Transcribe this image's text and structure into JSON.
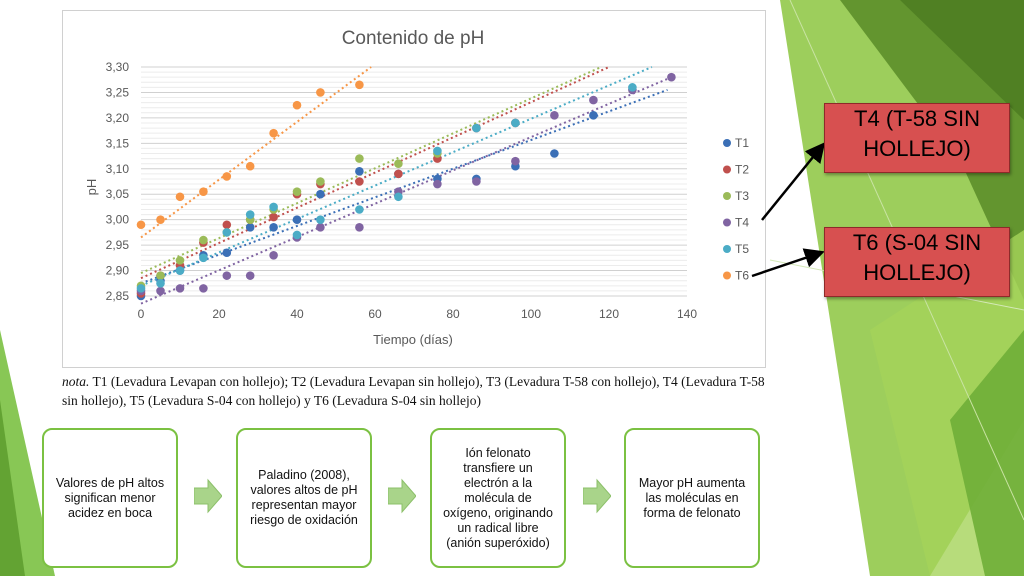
{
  "chart_data": {
    "type": "scatter",
    "title": "Contenido de pH",
    "xlabel": "Tiempo (días)",
    "ylabel": "pH",
    "xlim": [
      0,
      140
    ],
    "ylim": [
      2.85,
      3.3
    ],
    "xticks": [
      "0",
      "20",
      "40",
      "60",
      "80",
      "100",
      "120",
      "140"
    ],
    "yticks": [
      "2,85",
      "2,90",
      "2,95",
      "3,00",
      "3,05",
      "3,10",
      "3,15",
      "3,20",
      "3,25",
      "3,30"
    ],
    "grid": "horizontal",
    "legend_position": "right",
    "trendline_style": "dotted linear",
    "series": [
      {
        "name": "T1",
        "color": "#3b6fb6",
        "x": [
          0,
          5,
          10,
          16,
          22,
          28,
          34,
          40,
          46,
          56,
          66,
          76,
          86,
          96,
          106,
          116
        ],
        "y": [
          2.85,
          2.88,
          2.9,
          2.93,
          2.935,
          2.985,
          2.985,
          3.0,
          3.05,
          3.095,
          3.09,
          3.08,
          3.08,
          3.105,
          3.13,
          3.205
        ],
        "trend": [
          [
            0,
            2.875
          ],
          [
            135,
            3.255
          ]
        ]
      },
      {
        "name": "T2",
        "color": "#c0504d",
        "x": [
          0,
          5,
          10,
          16,
          22,
          28,
          34,
          40,
          46,
          56,
          66,
          76,
          86,
          96
        ],
        "y": [
          2.855,
          2.89,
          2.91,
          2.955,
          2.99,
          3.0,
          3.005,
          3.05,
          3.07,
          3.075,
          3.09,
          3.12,
          3.18,
          3.19
        ],
        "trend": [
          [
            0,
            2.885
          ],
          [
            120,
            3.3
          ]
        ]
      },
      {
        "name": "T3",
        "color": "#9bbb59",
        "x": [
          0,
          5,
          10,
          16,
          22,
          28,
          34,
          40,
          46,
          56,
          66,
          76
        ],
        "y": [
          2.87,
          2.89,
          2.92,
          2.96,
          2.975,
          3.0,
          3.02,
          3.055,
          3.075,
          3.12,
          3.11,
          3.13
        ],
        "trend": [
          [
            0,
            2.895
          ],
          [
            118,
            3.3
          ]
        ]
      },
      {
        "name": "T4",
        "color": "#8064a2",
        "x": [
          0,
          5,
          10,
          16,
          22,
          28,
          34,
          40,
          46,
          56,
          66,
          76,
          86,
          96,
          106,
          116,
          126,
          136
        ],
        "y": [
          2.86,
          2.86,
          2.865,
          2.865,
          2.89,
          2.89,
          2.93,
          2.965,
          2.985,
          2.985,
          3.055,
          3.07,
          3.075,
          3.115,
          3.205,
          3.235,
          3.255,
          3.28
        ],
        "trend": [
          [
            0,
            2.835
          ],
          [
            136,
            3.28
          ]
        ]
      },
      {
        "name": "T5",
        "color": "#4bacc6",
        "x": [
          0,
          5,
          10,
          16,
          22,
          28,
          34,
          40,
          46,
          56,
          66,
          76,
          86,
          96,
          126
        ],
        "y": [
          2.865,
          2.875,
          2.9,
          2.925,
          2.975,
          3.01,
          3.025,
          2.97,
          3.0,
          3.02,
          3.045,
          3.135,
          3.18,
          3.19,
          3.26
        ],
        "trend": [
          [
            0,
            2.87
          ],
          [
            131,
            3.3
          ]
        ]
      },
      {
        "name": "T6",
        "color": "#f79646",
        "x": [
          0,
          5,
          10,
          16,
          22,
          28,
          34,
          40,
          46,
          56
        ],
        "y": [
          2.99,
          3.0,
          3.045,
          3.055,
          3.085,
          3.105,
          3.17,
          3.225,
          3.25,
          3.265
        ],
        "trend": [
          [
            0,
            2.965
          ],
          [
            59,
            3.3
          ]
        ]
      }
    ]
  },
  "note": {
    "lead": "nota.",
    "text": "T1 (Levadura Levapan con hollejo); T2 (Levadura Levapan sin hollejo), T3 (Levadura T-58 con hollejo), T4 (Levadura T-58 sin hollejo), T5 (Levadura S-04 con hollejo) y T6 (Levadura S-04 sin hollejo)"
  },
  "callouts": [
    {
      "line1": "T4 (T-58 SIN",
      "line2": "HOLLEJO)"
    },
    {
      "line1": "T6 (S-04 SIN",
      "line2": "HOLLEJO)"
    }
  ],
  "flow": [
    "Valores de pH altos significan menor acidez en boca",
    "Paladino (2008), valores altos de pH representan mayor riesgo de oxidación",
    "Ión felonato transfiere un electrón a la molécula de oxígeno, originando un radical libre (anión superóxido)",
    "Mayor pH aumenta las moléculas en forma de felonato"
  ],
  "colors": {
    "accent_green": "#7bc142",
    "callout_red": "#d75050"
  }
}
